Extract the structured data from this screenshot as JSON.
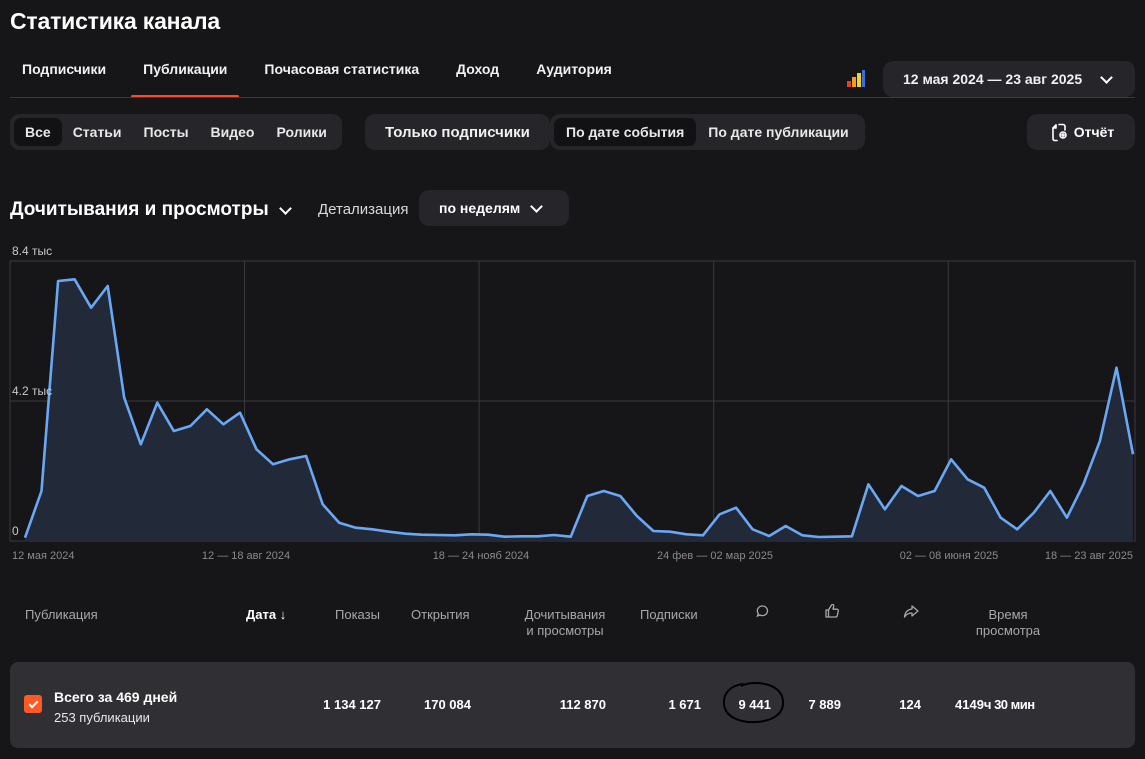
{
  "page_title": "Статистика канала",
  "tabs": [
    {
      "label": "Подписчики",
      "active": false
    },
    {
      "label": "Публикации",
      "active": true
    },
    {
      "label": "Почасовая статистика",
      "active": false
    },
    {
      "label": "Доход",
      "active": false
    },
    {
      "label": "Аудитория",
      "active": false
    }
  ],
  "date_range": "12 мая 2024 — 23 авг 2025",
  "filters": {
    "types": [
      "Все",
      "Статьи",
      "Посты",
      "Видео",
      "Ролики"
    ],
    "active_type": "Все",
    "subscribers_only": "Только подписчики",
    "date_modes": [
      "По дате события",
      "По дате публикации"
    ],
    "active_date_mode": "По дате события"
  },
  "report_button": "Отчёт",
  "metric_selector": "Дочитывания и просмотры",
  "detail": {
    "label": "Детализация",
    "value": "по неделям"
  },
  "chart_data": {
    "type": "area",
    "y_ticks": [
      "8.4 тыс",
      "4.2 тыс",
      "0"
    ],
    "ylim": [
      0,
      8400
    ],
    "x_tick_labels": [
      "12 мая 2024",
      "12 — 18 авг 2024",
      "18 — 24 нояб 2024",
      "24 фев — 02 мар 2025",
      "02 — 08 июня 2025",
      "18 — 23 авг 2025"
    ],
    "series": [
      {
        "values": [
          100,
          1500,
          7800,
          7850,
          7000,
          7650,
          4300,
          2900,
          4150,
          3300,
          3450,
          3950,
          3500,
          3850,
          2750,
          2300,
          2450,
          2550,
          1100,
          550,
          400,
          350,
          280,
          220,
          190,
          180,
          170,
          200,
          190,
          130,
          140,
          140,
          180,
          130,
          1350,
          1500,
          1350,
          750,
          300,
          280,
          200,
          170,
          800,
          1000,
          350,
          150,
          450,
          170,
          120,
          130,
          140,
          1700,
          950,
          1650,
          1350,
          1500,
          2450,
          1850,
          1600,
          700,
          350,
          850,
          1500,
          700,
          1700,
          3000,
          5200,
          2600
        ]
      }
    ],
    "color": "#6aa8f5",
    "grid": true
  },
  "table": {
    "headers": {
      "publication": "Публикация",
      "date": "Дата",
      "date_sort": "↓",
      "shows": "Показы",
      "opens": "Открытия",
      "reads": "Дочитывания\nи просмотры",
      "subs": "Подписки",
      "comments_icon": "comment-icon",
      "likes_icon": "thumbs-up-icon",
      "shares_icon": "share-icon",
      "watch_time": "Время\nпросмотра"
    },
    "total": {
      "title": "Всего за 469 дней",
      "subtitle": "253 публикации",
      "shows": "1 134 127",
      "opens": "170 084",
      "reads": "112 870",
      "subs": "1 671",
      "comments": "9 441",
      "likes": "7 889",
      "shares": "124",
      "watch_hours": "4149",
      "watch_suffix": "ч 30 мин"
    }
  },
  "colors": {
    "accent": "#ff4a2a",
    "line": "#6aa8f5",
    "bg": "#161618",
    "panel": "#26262a"
  }
}
